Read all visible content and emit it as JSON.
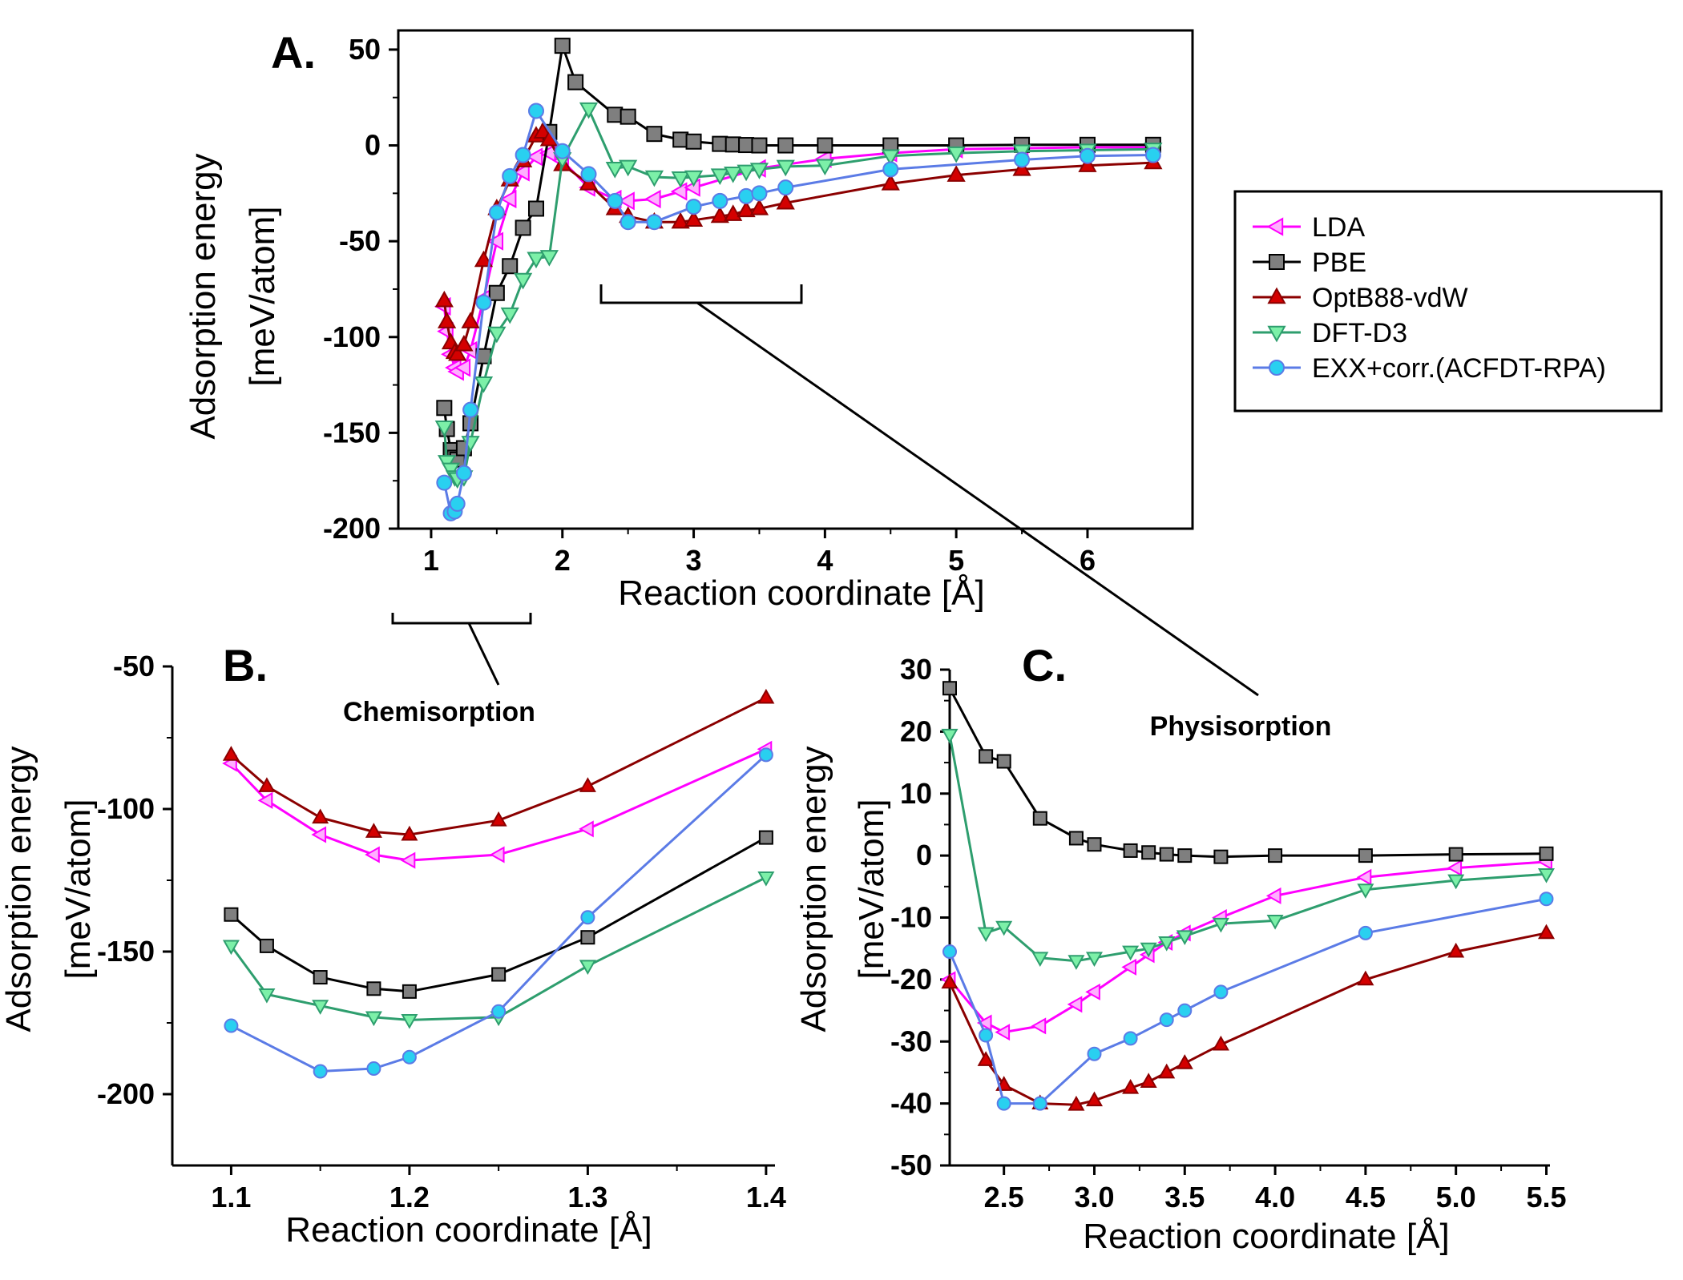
{
  "colors": {
    "LDA": "#ff00ff",
    "PBE": "#000000",
    "OptB88-vdW": "#8b0000",
    "DFT-D3": "#2e9e6e",
    "EXX+corr.(ACFDT-RPA)": "#5b7be6"
  },
  "legend": {
    "entries": [
      "LDA",
      "PBE",
      "OptB88-vdW",
      "DFT-D3",
      "EXX+corr.(ACFDT-RPA)"
    ]
  },
  "chart_data": [
    {
      "id": "A",
      "panel_label": "A.",
      "title": "",
      "type": "line",
      "xlabel": "Reaction coordinate [Å]",
      "ylabel_line1": "Adsorption energy",
      "ylabel_line2": "[meV/atom]",
      "xlim": [
        0.75,
        6.8
      ],
      "ylim": [
        -200,
        60
      ],
      "xticks": [
        1,
        2,
        3,
        4,
        5,
        6
      ],
      "xtick_labels": [
        "1",
        "2",
        "3",
        "4",
        "5",
        "6"
      ],
      "yticks": [
        50,
        0,
        -50,
        -100,
        -150,
        -200
      ],
      "ytick_labels": [
        "50",
        "0",
        "-50",
        "-100",
        "-150",
        "-200"
      ],
      "series": [
        {
          "name": "LDA",
          "marker": "triangle-left",
          "x": [
            1.1,
            1.12,
            1.15,
            1.18,
            1.2,
            1.25,
            1.3,
            1.4,
            1.5,
            1.6,
            1.7,
            1.8,
            1.9,
            2.0,
            2.2,
            2.4,
            2.5,
            2.7,
            2.9,
            3.0,
            3.5,
            4.0,
            4.5,
            5.0,
            5.5,
            6.0,
            6.5
          ],
          "y": [
            -84,
            -97,
            -109,
            -116,
            -118,
            -116,
            -107,
            -80,
            -50,
            -28,
            -14,
            -6,
            -4,
            -8,
            -22,
            -28,
            -29,
            -28,
            -24,
            -22,
            -12,
            -7,
            -4,
            -2,
            -1.5,
            -1,
            -1
          ]
        },
        {
          "name": "PBE",
          "marker": "square",
          "x": [
            1.1,
            1.12,
            1.15,
            1.18,
            1.2,
            1.25,
            1.3,
            1.4,
            1.5,
            1.6,
            1.7,
            1.8,
            1.9,
            2.0,
            2.1,
            2.4,
            2.5,
            2.7,
            2.9,
            3.0,
            3.2,
            3.3,
            3.4,
            3.5,
            3.7,
            4.0,
            4.5,
            5.0,
            5.5,
            6.0,
            6.5
          ],
          "y": [
            -137,
            -148,
            -159,
            -163,
            -164,
            -158,
            -145,
            -110,
            -77,
            -63,
            -43,
            -33,
            7,
            52,
            33,
            16,
            15,
            6,
            3,
            2,
            0.8,
            0.5,
            0.2,
            0,
            0,
            0,
            0,
            0,
            0.3,
            0.3,
            0.3
          ]
        },
        {
          "name": "OptB88-vdW",
          "marker": "triangle-up",
          "x": [
            1.1,
            1.12,
            1.15,
            1.18,
            1.2,
            1.25,
            1.3,
            1.4,
            1.5,
            1.6,
            1.7,
            1.8,
            1.85,
            1.9,
            2.0,
            2.2,
            2.4,
            2.5,
            2.7,
            2.9,
            3.0,
            3.2,
            3.3,
            3.4,
            3.5,
            3.7,
            4.5,
            5.0,
            5.5,
            6.0,
            6.5
          ],
          "y": [
            -81,
            -92,
            -103,
            -108,
            -109,
            -104,
            -92,
            -60,
            -33,
            -18,
            -8,
            5,
            7,
            3,
            -10,
            -20,
            -33,
            -37,
            -40,
            -40,
            -39,
            -37,
            -36,
            -34,
            -33,
            -30,
            -20,
            -15.5,
            -12.5,
            -10.5,
            -9
          ]
        },
        {
          "name": "DFT-D3",
          "marker": "triangle-down",
          "x": [
            1.1,
            1.12,
            1.15,
            1.18,
            1.2,
            1.25,
            1.3,
            1.4,
            1.5,
            1.6,
            1.7,
            1.8,
            1.9,
            2.0,
            2.2,
            2.4,
            2.5,
            2.7,
            2.9,
            3.0,
            3.2,
            3.3,
            3.4,
            3.5,
            3.7,
            4.0,
            4.5,
            5.0,
            5.5,
            6.0,
            6.5
          ],
          "y": [
            -147,
            -165,
            -169,
            -173,
            -174,
            -173,
            -155,
            -124,
            -98,
            -88,
            -70,
            -59,
            -58,
            -7,
            19,
            -12,
            -11,
            -16.5,
            -17,
            -16.5,
            -15.5,
            -14.5,
            -13.5,
            -12.5,
            -11,
            -10.5,
            -5.5,
            -4,
            -3,
            -2.5,
            -2
          ]
        },
        {
          "name": "EXX+corr.(ACFDT-RPA)",
          "marker": "circle",
          "x": [
            1.1,
            1.15,
            1.18,
            1.2,
            1.25,
            1.3,
            1.4,
            1.5,
            1.6,
            1.7,
            1.8,
            2.0,
            2.2,
            2.4,
            2.5,
            2.7,
            3.0,
            3.2,
            3.4,
            3.5,
            3.7,
            4.5,
            5.5,
            6.0,
            6.5
          ],
          "y": [
            -176,
            -192,
            -191,
            -187,
            -171,
            -138,
            -82,
            -35,
            -16,
            -5,
            18,
            -3,
            -15,
            -29,
            -40,
            -40,
            -32,
            -29,
            -26.5,
            -25,
            -22,
            -12.5,
            -7.5,
            -5.5,
            -5
          ]
        }
      ]
    },
    {
      "id": "B",
      "panel_label": "B.",
      "title": "Chemisorption",
      "type": "line",
      "xlabel": "Reaction coordinate [Å]",
      "ylabel_line1": "Adsorption energy",
      "ylabel_line2": "[meV/atom]",
      "xlim": [
        1.067,
        1.405
      ],
      "ylim": [
        -225,
        -50
      ],
      "xticks": [
        1.1,
        1.2,
        1.3,
        1.4
      ],
      "xtick_labels": [
        "1.1",
        "1.2",
        "1.3",
        "1.4"
      ],
      "yticks": [
        -50,
        -100,
        -150,
        -200
      ],
      "ytick_labels": [
        "-50",
        "-100",
        "-150",
        "-200"
      ],
      "series": [
        {
          "name": "LDA",
          "marker": "triangle-left",
          "x": [
            1.1,
            1.12,
            1.15,
            1.18,
            1.2,
            1.25,
            1.3,
            1.4
          ],
          "y": [
            -84,
            -97,
            -109,
            -116,
            -118,
            -116,
            -107,
            -79
          ]
        },
        {
          "name": "PBE",
          "marker": "square",
          "x": [
            1.1,
            1.12,
            1.15,
            1.18,
            1.2,
            1.25,
            1.3,
            1.4
          ],
          "y": [
            -137,
            -148,
            -159,
            -163,
            -164,
            -158,
            -145,
            -110
          ]
        },
        {
          "name": "OptB88-vdW",
          "marker": "triangle-up",
          "x": [
            1.1,
            1.12,
            1.15,
            1.18,
            1.2,
            1.25,
            1.3,
            1.4
          ],
          "y": [
            -81,
            -92,
            -103,
            -108,
            -109,
            -104,
            -92,
            -61
          ]
        },
        {
          "name": "DFT-D3",
          "marker": "triangle-down",
          "x": [
            1.1,
            1.12,
            1.15,
            1.18,
            1.2,
            1.25,
            1.3,
            1.4
          ],
          "y": [
            -148,
            -165,
            -169,
            -173,
            -174,
            -173,
            -155,
            -124
          ]
        },
        {
          "name": "EXX+corr.(ACFDT-RPA)",
          "marker": "circle",
          "x": [
            1.1,
            1.15,
            1.18,
            1.2,
            1.25,
            1.3,
            1.4
          ],
          "y": [
            -176,
            -192,
            -191,
            -187,
            -171,
            -138,
            -81
          ]
        }
      ]
    },
    {
      "id": "C",
      "panel_label": "C.",
      "title": "Physisorption",
      "type": "line",
      "xlabel": "Reaction coordinate [Å]",
      "ylabel_line1": "Adsorption energy",
      "ylabel_line2": "[meV/atom]",
      "xlim": [
        2.2,
        5.52
      ],
      "ylim": [
        -50,
        30
      ],
      "xticks": [
        2.5,
        3.0,
        3.5,
        4.0,
        4.5,
        5.0,
        5.5
      ],
      "xtick_labels": [
        "2.5",
        "3.0",
        "3.5",
        "4.0",
        "4.5",
        "5.0",
        "5.5"
      ],
      "yticks": [
        30,
        20,
        10,
        0,
        -10,
        -20,
        -30,
        -40,
        -50
      ],
      "ytick_labels": [
        "30",
        "20",
        "10",
        "0",
        "-10",
        "-20",
        "-30",
        "-40",
        "-50"
      ],
      "series": [
        {
          "name": "LDA",
          "marker": "triangle-left",
          "x": [
            2.2,
            2.4,
            2.5,
            2.7,
            2.9,
            3.0,
            3.2,
            3.3,
            3.4,
            3.5,
            3.7,
            4.0,
            4.5,
            5.0,
            5.5
          ],
          "y": [
            -20,
            -27,
            -28.5,
            -27.5,
            -24,
            -22,
            -18,
            -16,
            -14,
            -12.5,
            -10,
            -6.5,
            -3.5,
            -2,
            -1
          ]
        },
        {
          "name": "PBE",
          "marker": "square",
          "x": [
            2.2,
            2.4,
            2.5,
            2.7,
            2.9,
            3.0,
            3.2,
            3.3,
            3.4,
            3.5,
            3.7,
            4.0,
            4.5,
            5.0,
            5.5
          ],
          "y": [
            27,
            16,
            15.2,
            6,
            2.8,
            1.8,
            0.8,
            0.5,
            0.2,
            0,
            -0.2,
            0,
            0,
            0.2,
            0.3
          ]
        },
        {
          "name": "OptB88-vdW",
          "marker": "triangle-up",
          "x": [
            2.2,
            2.4,
            2.5,
            2.7,
            2.9,
            3.0,
            3.2,
            3.3,
            3.4,
            3.5,
            3.7,
            4.5,
            5.0,
            5.5
          ],
          "y": [
            -20.5,
            -33,
            -37,
            -40,
            -40.2,
            -39.5,
            -37.5,
            -36.5,
            -35,
            -33.5,
            -30.5,
            -20,
            -15.5,
            -12.5
          ]
        },
        {
          "name": "DFT-D3",
          "marker": "triangle-down",
          "x": [
            2.2,
            2.4,
            2.5,
            2.7,
            2.9,
            3.0,
            3.2,
            3.3,
            3.4,
            3.5,
            3.7,
            4.0,
            4.5,
            5.0,
            5.5
          ],
          "y": [
            19.5,
            -12.5,
            -11.5,
            -16.5,
            -17,
            -16.5,
            -15.5,
            -15,
            -14,
            -13,
            -11,
            -10.5,
            -5.5,
            -4,
            -3
          ]
        },
        {
          "name": "EXX+corr.(ACFDT-RPA)",
          "marker": "circle",
          "x": [
            2.2,
            2.4,
            2.5,
            2.7,
            3.0,
            3.2,
            3.4,
            3.5,
            3.7,
            4.5,
            5.5
          ],
          "y": [
            -15.5,
            -29,
            -40,
            -40,
            -32,
            -29.5,
            -26.5,
            -25,
            -22,
            -12.5,
            -7
          ]
        }
      ]
    }
  ]
}
